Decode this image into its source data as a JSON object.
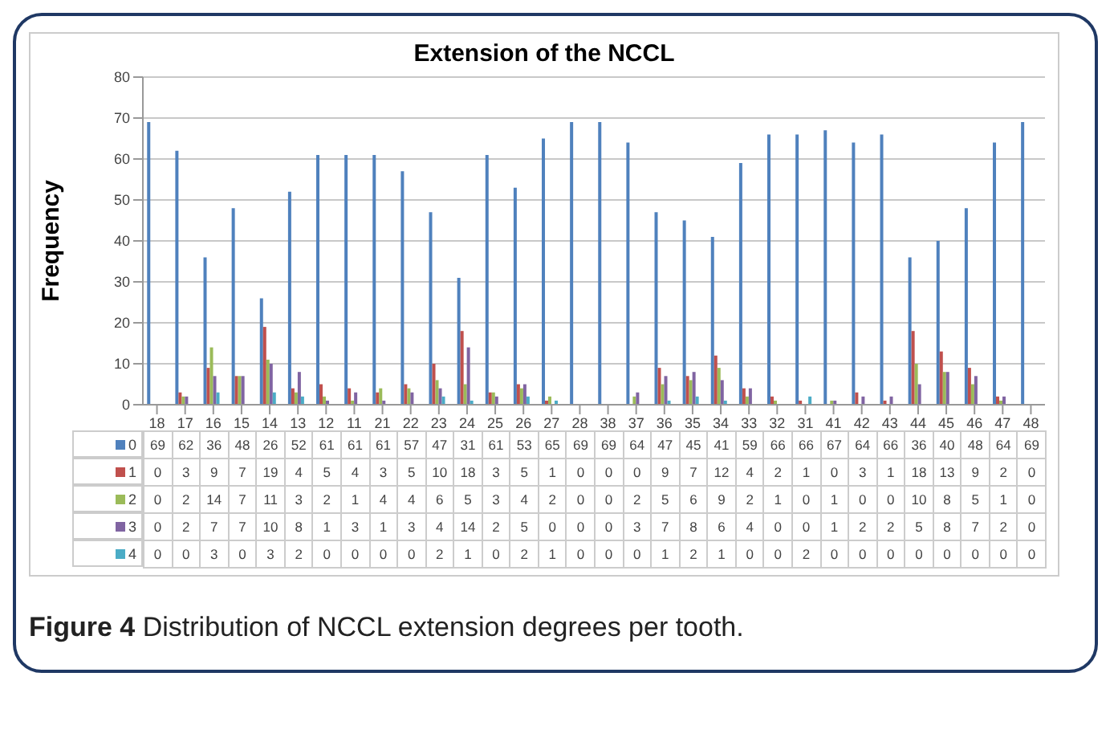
{
  "chart_data": {
    "type": "bar",
    "title": "Extension of the NCCL",
    "ylabel": "Frequency",
    "categories": [
      "18",
      "17",
      "16",
      "15",
      "14",
      "13",
      "12",
      "11",
      "21",
      "22",
      "23",
      "24",
      "25",
      "26",
      "27",
      "28",
      "38",
      "37",
      "36",
      "35",
      "34",
      "33",
      "32",
      "31",
      "41",
      "42",
      "43",
      "44",
      "45",
      "46",
      "47",
      "48"
    ],
    "series": [
      {
        "name": "0",
        "color": "#4f81bd",
        "values": [
          69,
          62,
          36,
          48,
          26,
          52,
          61,
          61,
          61,
          57,
          47,
          31,
          61,
          53,
          65,
          69,
          69,
          64,
          47,
          45,
          41,
          59,
          66,
          66,
          67,
          64,
          66,
          36,
          40,
          48,
          64,
          69
        ]
      },
      {
        "name": "1",
        "color": "#c0504d",
        "values": [
          0,
          3,
          9,
          7,
          19,
          4,
          5,
          4,
          3,
          5,
          10,
          18,
          3,
          5,
          1,
          0,
          0,
          0,
          9,
          7,
          12,
          4,
          2,
          1,
          0,
          3,
          1,
          18,
          13,
          9,
          2,
          0
        ]
      },
      {
        "name": "2",
        "color": "#9bbb59",
        "values": [
          0,
          2,
          14,
          7,
          11,
          3,
          2,
          1,
          4,
          4,
          6,
          5,
          3,
          4,
          2,
          0,
          0,
          2,
          5,
          6,
          9,
          2,
          1,
          0,
          1,
          0,
          0,
          10,
          8,
          5,
          1,
          0
        ]
      },
      {
        "name": "3",
        "color": "#8064a2",
        "values": [
          0,
          2,
          7,
          7,
          10,
          8,
          1,
          3,
          1,
          3,
          4,
          14,
          2,
          5,
          0,
          0,
          0,
          3,
          7,
          8,
          6,
          4,
          0,
          0,
          1,
          2,
          2,
          5,
          8,
          7,
          2,
          0
        ]
      },
      {
        "name": "4",
        "color": "#4bacc6",
        "values": [
          0,
          0,
          3,
          0,
          3,
          2,
          0,
          0,
          0,
          0,
          2,
          1,
          0,
          2,
          1,
          0,
          0,
          0,
          1,
          2,
          1,
          0,
          0,
          2,
          0,
          0,
          0,
          0,
          0,
          0,
          0,
          0
        ]
      }
    ],
    "ylim": [
      0,
      80
    ],
    "yticks": [
      0,
      10,
      20,
      30,
      40,
      50,
      60,
      70,
      80
    ],
    "grid": "y",
    "legend": "bottom",
    "data_labels": true,
    "annotations": [
      "Figure 4 Distribution of NCCL extension degrees per tooth."
    ]
  }
}
